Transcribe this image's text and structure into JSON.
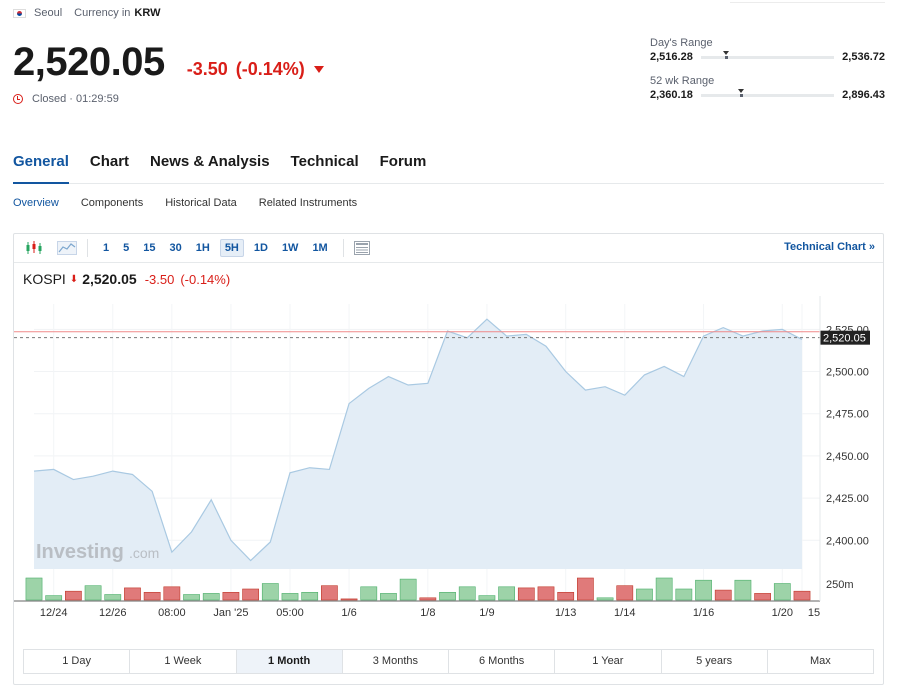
{
  "header": {
    "exchange": "Seoul",
    "currency_label": "Currency in",
    "currency": "KRW",
    "price": "2,520.05",
    "change": "-3.50",
    "change_pct": "(-0.14%)",
    "status": "Closed · 01:29:59"
  },
  "ranges": {
    "day": {
      "label": "Day's Range",
      "low": "2,516.28",
      "high": "2,536.72",
      "position": 0.19
    },
    "week52": {
      "label": "52 wk Range",
      "low": "2,360.18",
      "high": "2,896.43",
      "position": 0.3
    }
  },
  "tabs": [
    "General",
    "Chart",
    "News & Analysis",
    "Technical",
    "Forum"
  ],
  "subtabs": [
    "Overview",
    "Components",
    "Historical Data",
    "Related Instruments"
  ],
  "toolbar": {
    "intervals": [
      "1",
      "5",
      "15",
      "30",
      "1H",
      "5H",
      "1D",
      "1W",
      "1M"
    ],
    "active_interval": "5H",
    "technical_link": "Technical Chart »"
  },
  "legend": {
    "symbol": "KOSPI",
    "arrow": "⬇",
    "value": "2,520.05",
    "change": "-3.50",
    "change_pct": "(-0.14%)"
  },
  "watermark": {
    "brand": "Investing",
    "suffix": ".com"
  },
  "colors": {
    "accent": "#1256a0",
    "down": "#d91e18",
    "up_volume": "#9dd3a8",
    "down_volume": "#e07a7a",
    "area": "#e3edf6",
    "line": "#a9c9e2"
  },
  "chart_data": {
    "type": "area",
    "ylim": [
      2383,
      2540
    ],
    "y_ticks": [
      "2,400.00",
      "2,425.00",
      "2,450.00",
      "2,475.00",
      "2,500.00",
      "2,525.00"
    ],
    "last_label": "2,520.05",
    "last_value": 2520.05,
    "ref_value": 2523.55,
    "x_ticks": [
      "12/24",
      "12/26",
      "08:00",
      "Jan '25",
      "05:00",
      "1/6",
      "1/8",
      "1/9",
      "1/13",
      "1/14",
      "1/16",
      "1/20",
      "15"
    ],
    "x_tick_index": [
      1,
      4,
      7,
      10,
      13,
      16,
      20,
      23,
      27,
      30,
      34,
      38,
      40
    ],
    "values": [
      2441,
      2442,
      2436,
      2438,
      2441,
      2439,
      2429,
      2393,
      2405,
      2424,
      2400,
      2388,
      2399,
      2440,
      2443,
      2442,
      2481,
      2490,
      2497,
      2492,
      2493,
      2524,
      2520,
      2531,
      2521,
      2522,
      2515,
      2500,
      2489,
      2491,
      2486,
      2498,
      2503,
      2497,
      2521,
      2526,
      2521,
      2524,
      2525,
      2519
    ],
    "volume_label": "250m",
    "volume": [
      20,
      4,
      8,
      13,
      5,
      11,
      7,
      12,
      5,
      6,
      7,
      10,
      15,
      6,
      7,
      13,
      1,
      12,
      6,
      19,
      2,
      7,
      12,
      4,
      12,
      11,
      12,
      7,
      20,
      2,
      13,
      10,
      20,
      10,
      18,
      9,
      18,
      6,
      15,
      8
    ],
    "volume_up": [
      true,
      true,
      false,
      true,
      true,
      false,
      false,
      false,
      true,
      true,
      false,
      false,
      true,
      true,
      true,
      false,
      false,
      true,
      true,
      true,
      false,
      true,
      true,
      true,
      true,
      false,
      false,
      false,
      false,
      true,
      false,
      true,
      true,
      true,
      true,
      false,
      true,
      false,
      true,
      false
    ],
    "grid": true
  }
}
